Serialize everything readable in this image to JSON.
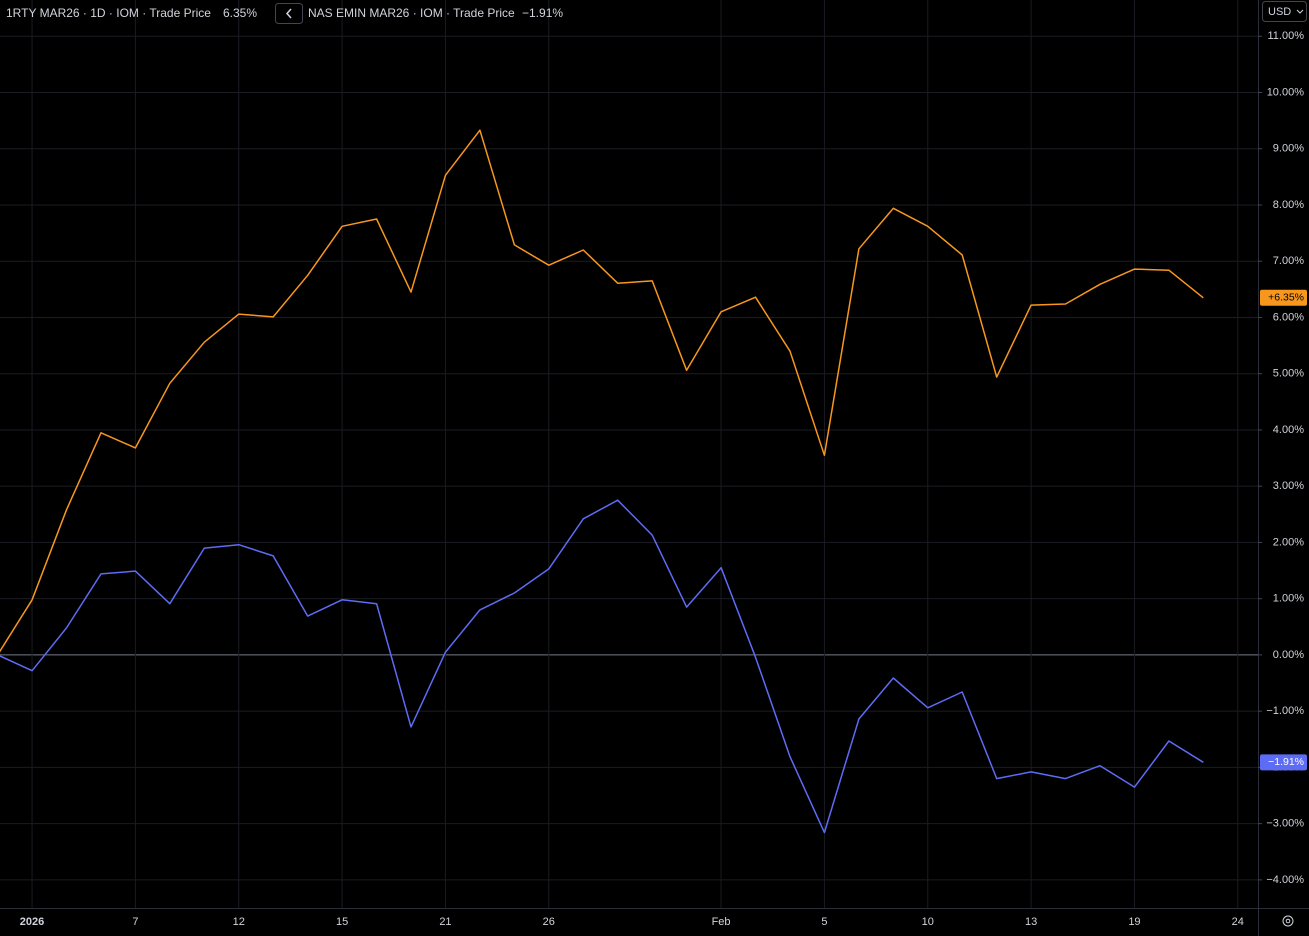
{
  "chart_data": {
    "type": "line",
    "currency": "USD",
    "categories": [
      null,
      "2026",
      null,
      null,
      "7",
      null,
      null,
      "12",
      null,
      null,
      "15",
      null,
      null,
      "21",
      null,
      null,
      "26",
      null,
      null,
      null,
      null,
      "Feb",
      null,
      null,
      "5",
      null,
      null,
      "10",
      null,
      null,
      "13",
      null,
      null,
      "19",
      null,
      null,
      "24"
    ],
    "series": [
      {
        "name": "1RTY MAR26 · 1D · IOM · Trade Price",
        "legend_value": "6.35%",
        "last_value_label": "+6.35%",
        "color": "#f7971e",
        "values": [
          0,
          0.98,
          2.58,
          3.95,
          3.68,
          4.83,
          5.56,
          6.06,
          6.01,
          6.75,
          7.62,
          7.75,
          6.45,
          8.53,
          9.33,
          7.29,
          6.93,
          7.2,
          6.61,
          6.65,
          5.06,
          6.1,
          6.36,
          5.4,
          3.55,
          7.22,
          7.94,
          7.62,
          7.11,
          4.94,
          6.22,
          6.24,
          6.59,
          6.86,
          6.84,
          6.35,
          null
        ]
      },
      {
        "name": "NAS EMIN MAR26 · IOM · Trade Price",
        "legend_value": "−1.91%",
        "last_value_label": "−1.91%",
        "color": "#5d6cf5",
        "values": [
          0,
          -0.28,
          0.48,
          1.44,
          1.49,
          0.91,
          1.9,
          1.96,
          1.76,
          0.69,
          0.98,
          0.91,
          -1.28,
          0.05,
          0.8,
          1.1,
          1.53,
          2.42,
          2.75,
          2.13,
          0.85,
          1.55,
          -0.04,
          -1.81,
          -3.16,
          -1.14,
          -0.41,
          -0.94,
          -0.66,
          -2.2,
          -2.08,
          -2.2,
          -1.97,
          -2.35,
          -1.53,
          -1.91,
          null
        ]
      }
    ],
    "ylim": [
      -4.5,
      11.2
    ],
    "yticks": [
      {
        "value": -4,
        "label": "−4.00%"
      },
      {
        "value": -3,
        "label": "−3.00%"
      },
      {
        "value": -2,
        "label": "−2.00%"
      },
      {
        "value": -1,
        "label": "−1.00%"
      },
      {
        "value": 0,
        "label": "0.00%"
      },
      {
        "value": 1,
        "label": "1.00%"
      },
      {
        "value": 2,
        "label": "2.00%"
      },
      {
        "value": 3,
        "label": "3.00%"
      },
      {
        "value": 4,
        "label": "4.00%"
      },
      {
        "value": 5,
        "label": "5.00%"
      },
      {
        "value": 6,
        "label": "6.00%"
      },
      {
        "value": 7,
        "label": "7.00%"
      },
      {
        "value": 8,
        "label": "8.00%"
      },
      {
        "value": 9,
        "label": "9.00%"
      },
      {
        "value": 10,
        "label": "10.00%"
      },
      {
        "value": 11,
        "label": "11.00%"
      }
    ],
    "grid": true
  }
}
